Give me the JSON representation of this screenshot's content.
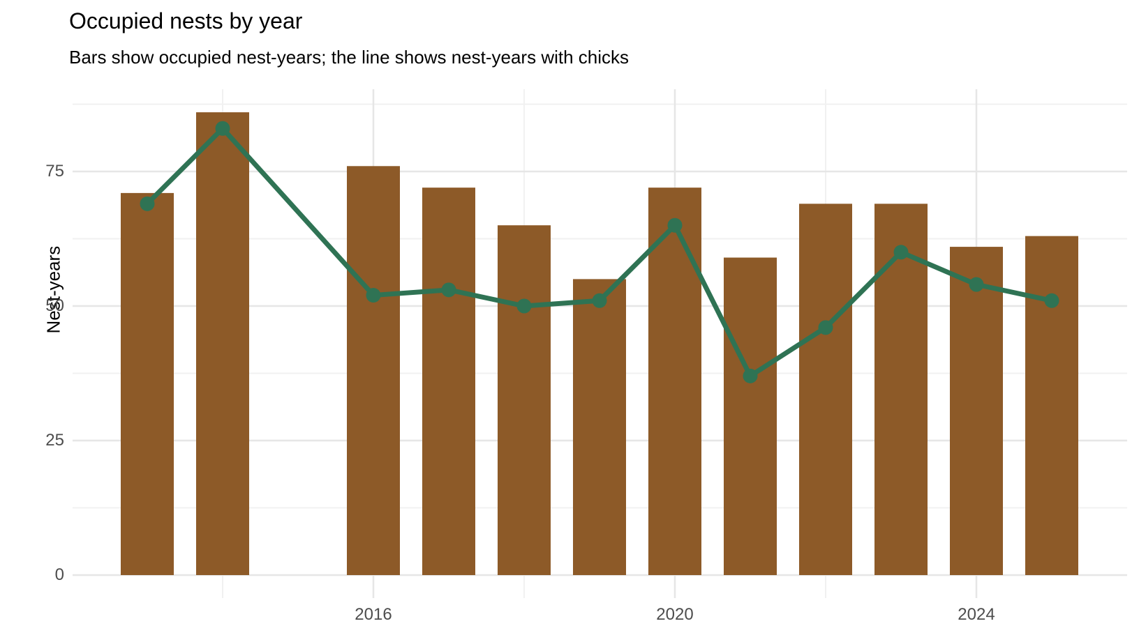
{
  "chart": {
    "title": "Occupied nests by year",
    "subtitle": "Bars show occupied nest-years; the line shows nest-years with chicks",
    "ylabel": "Nest-years"
  },
  "chart_data": {
    "type": "bar",
    "title": "Occupied nests by year",
    "subtitle": "Bars show occupied nest-years; the line shows nest-years with chicks",
    "xlabel": "",
    "ylabel": "Nest-years",
    "x": [
      2013,
      2014,
      2016,
      2017,
      2018,
      2019,
      2020,
      2021,
      2022,
      2023,
      2024,
      2025
    ],
    "series": [
      {
        "name": "Occupied nest-years",
        "type": "bar",
        "color": "#8d5a28",
        "values": [
          71,
          86,
          76,
          72,
          65,
          55,
          72,
          59,
          69,
          69,
          61,
          63
        ]
      },
      {
        "name": "Nest-years with chicks",
        "type": "line",
        "color": "#2f7354",
        "values": [
          69,
          83,
          52,
          53,
          50,
          51,
          65,
          37,
          46,
          60,
          54,
          51
        ]
      }
    ],
    "ylim": [
      0,
      90
    ],
    "yticks": [
      0,
      25,
      50,
      75
    ],
    "ytick_labels": [
      "0",
      "25",
      "50",
      "75"
    ],
    "xticks": [
      2016,
      2020,
      2024
    ],
    "xtick_labels": [
      "2016",
      "2020",
      "2024"
    ],
    "grid": "major and minor, light grey, no axis lines",
    "legend": "none",
    "colors": {
      "bar": "#8d5a28",
      "line": "#2f7354",
      "grid_major": "#e6e6e6",
      "grid_minor": "#f1f1f1",
      "tick_text": "#4d4d4d",
      "title_text": "#000000"
    }
  }
}
